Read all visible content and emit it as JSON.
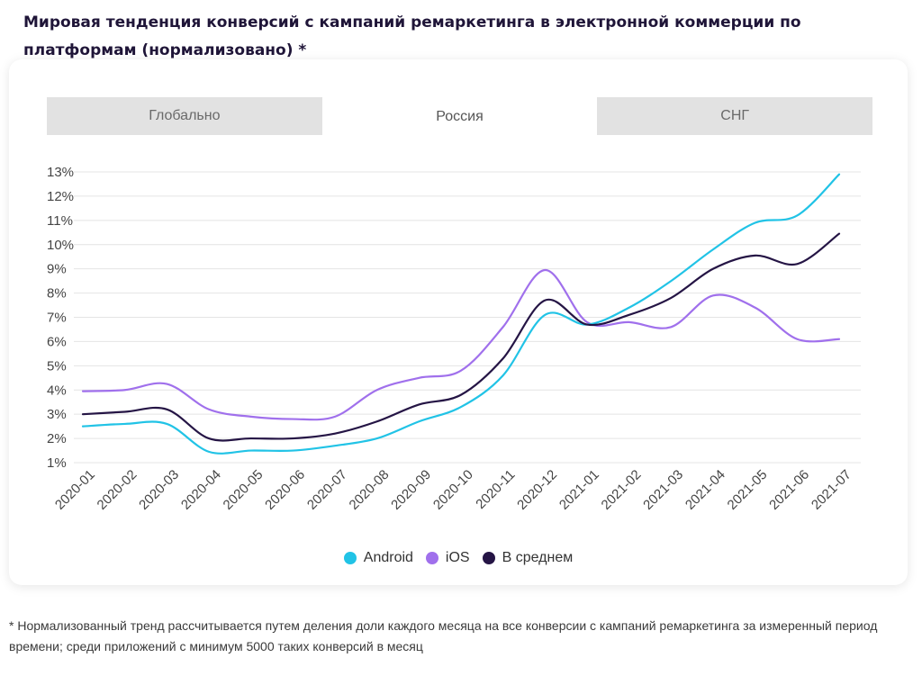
{
  "title": "Мировая тенденция конверсий с кампаний ремаркетинга в электронной коммерции по платформам (нормализовано) *",
  "tabs": [
    {
      "label": "Глобально",
      "active": false
    },
    {
      "label": "Россия",
      "active": true
    },
    {
      "label": "СНГ",
      "active": false
    }
  ],
  "chart_data": {
    "type": "line",
    "x": [
      "2020-01",
      "2020-02",
      "2020-03",
      "2020-04",
      "2020-05",
      "2020-06",
      "2020-07",
      "2020-08",
      "2020-09",
      "2020-10",
      "2020-11",
      "2020-12",
      "2021-01",
      "2021-02",
      "2021-03",
      "2021-04",
      "2021-05",
      "2021-06",
      "2021-07"
    ],
    "y_ticks": [
      "1%",
      "2%",
      "3%",
      "4%",
      "5%",
      "6%",
      "7%",
      "8%",
      "9%",
      "10%",
      "11%",
      "12%",
      "13%"
    ],
    "ylim": [
      1,
      13
    ],
    "grid": true,
    "legend_position": "bottom",
    "series": [
      {
        "name": "Android",
        "color": "#21c3e6",
        "values": [
          2.5,
          2.6,
          2.6,
          1.45,
          1.5,
          1.5,
          1.7,
          2.0,
          2.7,
          3.3,
          4.6,
          7.1,
          6.7,
          7.4,
          8.5,
          9.8,
          10.9,
          11.2,
          12.9
        ]
      },
      {
        "name": "iOS",
        "color": "#a070ec",
        "values": [
          3.95,
          4.0,
          4.25,
          3.2,
          2.9,
          2.8,
          2.9,
          4.0,
          4.5,
          4.8,
          6.6,
          8.95,
          6.8,
          6.8,
          6.6,
          7.9,
          7.4,
          6.1,
          6.1
        ]
      },
      {
        "name": "В среднем",
        "color": "#251545",
        "values": [
          3.0,
          3.1,
          3.2,
          2.0,
          2.0,
          2.0,
          2.2,
          2.7,
          3.4,
          3.8,
          5.3,
          7.7,
          6.7,
          7.1,
          7.8,
          9.0,
          9.55,
          9.2,
          10.45
        ]
      }
    ]
  },
  "footnote": "* Нормализованный тренд рассчитывается путем деления доли каждого месяца на все конверсии с кампаний ремаркетинга за измеренный период времени; среди приложений с минимум 5000 таких конверсий в месяц"
}
